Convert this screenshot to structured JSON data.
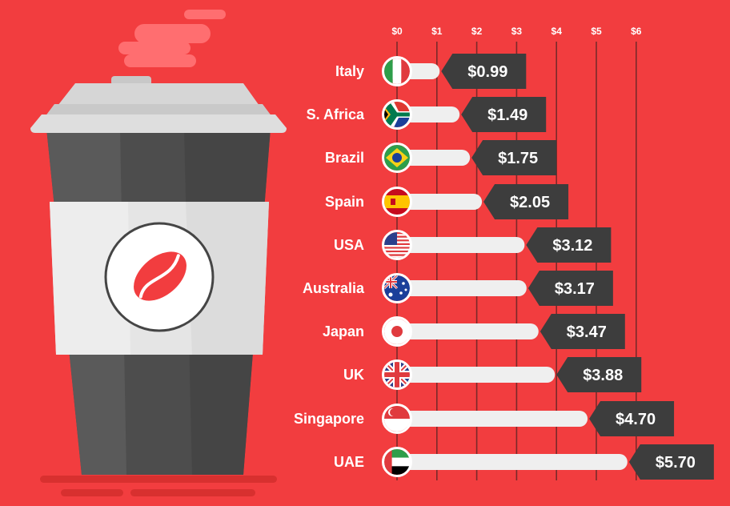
{
  "chart_data": {
    "type": "bar",
    "orientation": "horizontal",
    "categories": [
      "Italy",
      "S. Africa",
      "Brazil",
      "Spain",
      "USA",
      "Australia",
      "Japan",
      "UK",
      "Singapore",
      "UAE"
    ],
    "values": [
      0.99,
      1.49,
      1.75,
      2.05,
      3.12,
      3.17,
      3.47,
      3.88,
      4.7,
      5.7
    ],
    "value_labels": [
      "$0.99",
      "$1.49",
      "$1.75",
      "$2.05",
      "$3.12",
      "$3.17",
      "$3.47",
      "$3.88",
      "$4.70",
      "$5.70"
    ],
    "flags": [
      "italy-flag-icon",
      "south-africa-flag-icon",
      "brazil-flag-icon",
      "spain-flag-icon",
      "usa-flag-icon",
      "australia-flag-icon",
      "japan-flag-icon",
      "uk-flag-icon",
      "singapore-flag-icon",
      "uae-flag-icon"
    ],
    "x_ticks": [
      "$0",
      "$1",
      "$2",
      "$3",
      "$4",
      "$5",
      "$6"
    ],
    "xlim": [
      0,
      6
    ],
    "grid": true,
    "title": "",
    "xlabel": "",
    "ylabel": ""
  },
  "illustration": {
    "icon": "coffee-cup-icon"
  },
  "colors": {
    "background": "#f23d3f",
    "bar": "#efefef",
    "label_box": "#3d3d3d",
    "grid": "#7a2a2a",
    "text": "#ffffff"
  }
}
